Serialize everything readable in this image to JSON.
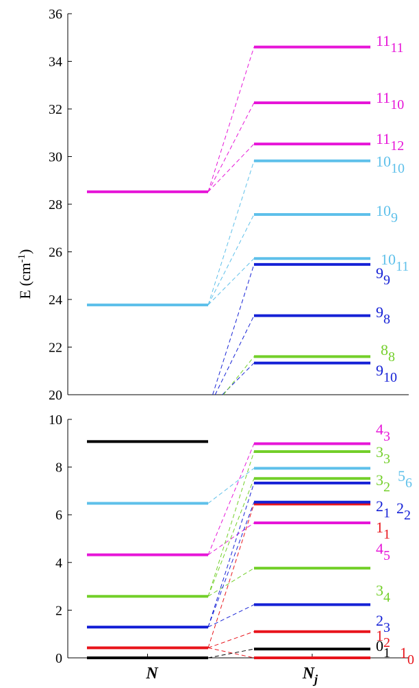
{
  "chart_data": {
    "type": "energy-level-diagram",
    "ylabel": "E (cm",
    "ylabel_sup": "-1",
    "ylabel_close": ")",
    "columns": [
      {
        "label": "N",
        "sub": ""
      },
      {
        "label": "N",
        "sub": "j"
      }
    ],
    "colors": {
      "0": "#000000",
      "1": "#e8141b",
      "2": "#1521d6",
      "3": "#73cf2a",
      "4": "#e615d8",
      "5": "#5ec0ea",
      "8": "#73cf2a",
      "9": "#1521d6",
      "10": "#5ec0ea",
      "11": "#e615d8"
    },
    "panels": [
      {
        "name": "upper",
        "ylim": [
          20,
          36
        ],
        "yticks": [
          20,
          22,
          24,
          26,
          28,
          30,
          32,
          34,
          36
        ]
      },
      {
        "name": "lower",
        "ylim": [
          0,
          10
        ],
        "yticks": [
          0,
          2,
          4,
          6,
          8,
          10
        ]
      }
    ],
    "n_levels": [
      {
        "N": 0,
        "energy": 0.0
      },
      {
        "N": 1,
        "energy": 0.42
      },
      {
        "N": 2,
        "energy": 1.29
      },
      {
        "N": 3,
        "energy": 2.58
      },
      {
        "N": 4,
        "energy": 4.32
      },
      {
        "N": 5,
        "energy": 6.48
      },
      {
        "N": 6,
        "energy": 9.07
      },
      {
        "N": 8,
        "energy": 19.2
      },
      {
        "N": 9,
        "energy": 19.4
      },
      {
        "N": 10,
        "energy": 23.77
      },
      {
        "N": 11,
        "energy": 28.52
      }
    ],
    "nj_levels": [
      {
        "N": 0,
        "j": 1,
        "energy": 0.37,
        "label_main": "0",
        "label_sub": "1"
      },
      {
        "N": 1,
        "j": 0,
        "energy": 0.0,
        "label_main": "1",
        "label_sub": "0"
      },
      {
        "N": 1,
        "j": 2,
        "energy": 1.1,
        "label_main": "1",
        "label_sub": "2"
      },
      {
        "N": 2,
        "j": 3,
        "energy": 2.23,
        "label_main": "2",
        "label_sub": "3"
      },
      {
        "N": 3,
        "j": 4,
        "energy": 3.76,
        "label_main": "3",
        "label_sub": "4"
      },
      {
        "N": 4,
        "j": 5,
        "energy": 5.66,
        "label_main": "4",
        "label_sub": "5"
      },
      {
        "N": 1,
        "j": 1,
        "energy": 6.45,
        "label_main": "1",
        "label_sub": "1"
      },
      {
        "N": 2,
        "j": 1,
        "energy": 6.53,
        "label_main": "2",
        "label_sub": "1"
      },
      {
        "N": 2,
        "j": 2,
        "energy": 7.33,
        "label_main": "2",
        "label_sub": "2"
      },
      {
        "N": 3,
        "j": 2,
        "energy": 7.52,
        "label_main": "3",
        "label_sub": "2"
      },
      {
        "N": 5,
        "j": 6,
        "energy": 7.95,
        "label_main": "5",
        "label_sub": "6"
      },
      {
        "N": 3,
        "j": 3,
        "energy": 8.65,
        "label_main": "3",
        "label_sub": "3"
      },
      {
        "N": 4,
        "j": 3,
        "energy": 8.98,
        "label_main": "4",
        "label_sub": "3"
      },
      {
        "N": 9,
        "j": 10,
        "energy": 21.33,
        "label_main": "9",
        "label_sub": "10"
      },
      {
        "N": 8,
        "j": 8,
        "energy": 21.6,
        "label_main": "8",
        "label_sub": "8"
      },
      {
        "N": 9,
        "j": 8,
        "energy": 23.32,
        "label_main": "9",
        "label_sub": "8"
      },
      {
        "N": 9,
        "j": 9,
        "energy": 25.47,
        "label_main": "9",
        "label_sub": "9"
      },
      {
        "N": 10,
        "j": 11,
        "energy": 25.72,
        "label_main": "10",
        "label_sub": "11"
      },
      {
        "N": 10,
        "j": 9,
        "energy": 27.57,
        "label_main": "10",
        "label_sub": "9"
      },
      {
        "N": 10,
        "j": 10,
        "energy": 29.82,
        "label_main": "10",
        "label_sub": "10"
      },
      {
        "N": 11,
        "j": 12,
        "energy": 30.53,
        "label_main": "11",
        "label_sub": "12"
      },
      {
        "N": 11,
        "j": 10,
        "energy": 32.26,
        "label_main": "11",
        "label_sub": "10"
      },
      {
        "N": 11,
        "j": 11,
        "energy": 34.6,
        "label_main": "11",
        "label_sub": "11"
      }
    ]
  }
}
